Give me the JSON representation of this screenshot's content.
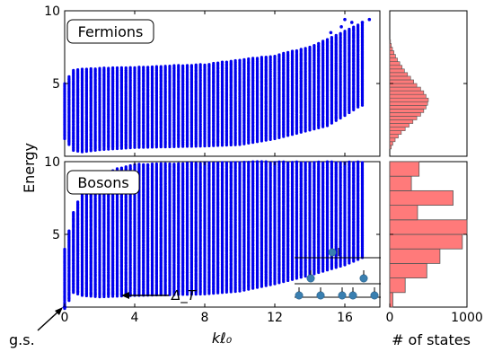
{
  "figure": {
    "ylabel": "Energy",
    "xlabel": "kℓ₀",
    "hist_xlabel": "# of states",
    "gs_label": "g.s.",
    "gap_label": "Δ_T",
    "colors": {
      "points": "#0000ee",
      "hist_fill": "#ff7a7a",
      "hist_edge": "#555555",
      "inset_points": "#3a7fb0"
    }
  },
  "chart_data": [
    {
      "type": "scatter",
      "panel": "fermions",
      "title": "Fermions",
      "xlim": [
        0,
        18
      ],
      "ylim": [
        0,
        10
      ],
      "xticks": [
        "0",
        "4",
        "8",
        "12",
        "16"
      ],
      "yticks": [
        "5",
        "10"
      ],
      "grid": false,
      "x_range_spectrum": [
        0,
        16.9
      ],
      "lower_edge": [
        [
          0.0,
          1.3
        ],
        [
          0.5,
          0.5
        ],
        [
          1.0,
          0.4
        ],
        [
          2.0,
          0.55
        ],
        [
          4.0,
          0.7
        ],
        [
          6.0,
          0.75
        ],
        [
          8.0,
          0.8
        ],
        [
          10.0,
          0.9
        ],
        [
          12.0,
          1.3
        ],
        [
          14.0,
          1.9
        ],
        [
          15.0,
          2.2
        ],
        [
          16.0,
          2.9
        ],
        [
          16.9,
          3.6
        ]
      ],
      "upper_edge": [
        [
          0.0,
          5.0
        ],
        [
          0.5,
          5.9
        ],
        [
          1.0,
          6.0
        ],
        [
          4.0,
          6.1
        ],
        [
          8.0,
          6.3
        ],
        [
          12.0,
          6.9
        ],
        [
          14.0,
          7.5
        ],
        [
          15.5,
          8.3
        ],
        [
          16.9,
          9.1
        ]
      ],
      "outliers": [
        [
          15.8,
          8.9
        ],
        [
          16.4,
          9.2
        ],
        [
          17.0,
          9.2
        ],
        [
          17.4,
          9.4
        ],
        [
          15.2,
          8.5
        ],
        [
          16.0,
          9.4
        ]
      ]
    },
    {
      "type": "bar",
      "panel": "fermions-histogram",
      "orientation": "horizontal",
      "xlim": [
        0,
        1000
      ],
      "ylim": [
        0,
        10
      ],
      "bin_width": 0.25,
      "bins_start": 0.5,
      "counts": [
        20,
        40,
        70,
        110,
        150,
        200,
        250,
        300,
        350,
        400,
        440,
        470,
        490,
        500,
        470,
        440,
        400,
        350,
        310,
        270,
        230,
        190,
        160,
        130,
        100,
        75,
        55,
        35,
        20,
        10
      ]
    },
    {
      "type": "scatter",
      "panel": "bosons",
      "title": "Bosons",
      "xlim": [
        0,
        18
      ],
      "ylim": [
        0,
        10
      ],
      "xticks": [
        "0",
        "4",
        "8",
        "12",
        "16"
      ],
      "yticks": [
        "5",
        "10"
      ],
      "grid": false,
      "ground_state": [
        0,
        0
      ],
      "gap_level": 0.9,
      "lower_edge": [
        [
          0.0,
          0.0
        ],
        [
          0.5,
          1.1
        ],
        [
          1.0,
          0.9
        ],
        [
          2.0,
          0.8
        ],
        [
          4.0,
          0.9
        ],
        [
          8.0,
          1.0
        ],
        [
          10.0,
          1.2
        ],
        [
          12.0,
          1.7
        ],
        [
          14.0,
          2.3
        ],
        [
          16.0,
          3.0
        ],
        [
          17.0,
          3.5
        ]
      ],
      "upper_edge": [
        [
          0.0,
          4.0
        ],
        [
          0.5,
          6.5
        ],
        [
          1.0,
          8.0
        ],
        [
          2.0,
          9.0
        ],
        [
          3.0,
          9.5
        ],
        [
          4.0,
          9.8
        ],
        [
          8.0,
          9.9
        ],
        [
          12.0,
          10.0
        ],
        [
          17.0,
          10.0
        ]
      ]
    },
    {
      "type": "bar",
      "panel": "bosons-histogram",
      "orientation": "horizontal",
      "xlim": [
        0,
        1000
      ],
      "ylim": [
        0,
        10
      ],
      "bins": [
        {
          "y0": 0.0,
          "y1": 1.0,
          "count": 40
        },
        {
          "y0": 1.0,
          "y1": 2.0,
          "count": 200
        },
        {
          "y0": 2.0,
          "y1": 3.0,
          "count": 480
        },
        {
          "y0": 3.0,
          "y1": 4.0,
          "count": 650
        },
        {
          "y0": 4.0,
          "y1": 5.0,
          "count": 940
        },
        {
          "y0": 5.0,
          "y1": 6.0,
          "count": 1020
        },
        {
          "y0": 6.0,
          "y1": 7.0,
          "count": 360
        },
        {
          "y0": 7.0,
          "y1": 8.0,
          "count": 820
        },
        {
          "y0": 8.0,
          "y1": 9.0,
          "count": 280
        },
        {
          "y0": 9.0,
          "y1": 10.0,
          "count": 380
        }
      ]
    }
  ]
}
